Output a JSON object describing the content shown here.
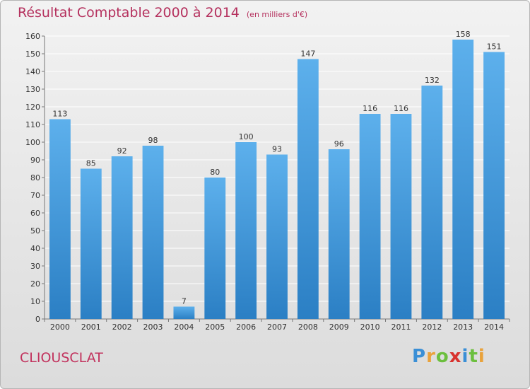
{
  "header": {
    "title": "Résultat Comptable 2000 à 2014",
    "unit": "(en milliers d'€)"
  },
  "footer": {
    "city": "CLIOUSCLAT",
    "logo_letters": [
      "P",
      "r",
      "o",
      "x",
      "i",
      "t",
      "i"
    ],
    "logo_colors": [
      "#3a8fd6",
      "#e9a23b",
      "#6cbf3e",
      "#d8322e",
      "#3a8fd6",
      "#6cbf3e",
      "#e9a23b"
    ]
  },
  "colors": {
    "bar_light": "#5db0ec",
    "bar_dark": "#2b7fc4",
    "grid": "#ffffff",
    "title": "#b5315e"
  },
  "chart_data": {
    "type": "bar",
    "title": "Résultat Comptable 2000 à 2014",
    "subtitle": "(en milliers d'€)",
    "categories": [
      "2000",
      "2001",
      "2002",
      "2003",
      "2004",
      "2005",
      "2006",
      "2007",
      "2008",
      "2009",
      "2010",
      "2011",
      "2012",
      "2013",
      "2014"
    ],
    "values": [
      113,
      85,
      92,
      98,
      7,
      80,
      100,
      93,
      147,
      96,
      116,
      116,
      132,
      158,
      151
    ],
    "ylim": [
      0,
      160
    ],
    "yticks": [
      0,
      10,
      20,
      30,
      40,
      50,
      60,
      70,
      80,
      90,
      100,
      110,
      120,
      130,
      140,
      150,
      160
    ],
    "grid": true,
    "xlabel": "",
    "ylabel": ""
  }
}
